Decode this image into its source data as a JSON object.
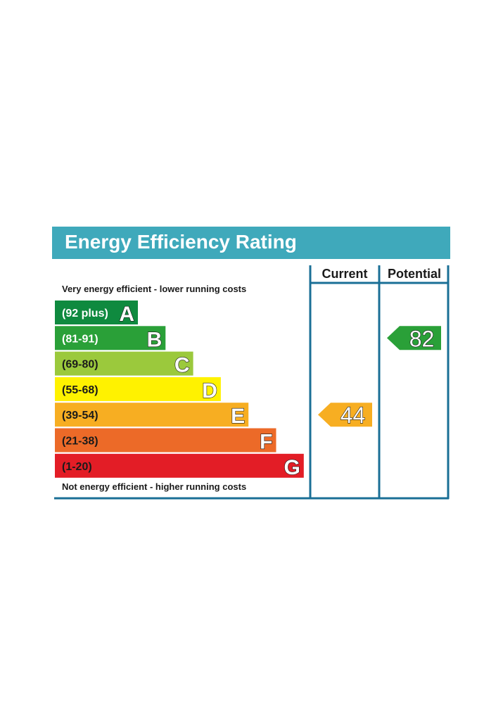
{
  "title": "Energy Efficiency Rating",
  "columns": {
    "current": "Current",
    "potential": "Potential"
  },
  "top_caption": "Very energy efficient - lower running costs",
  "bottom_caption": "Not energy efficient - higher running costs",
  "colors": {
    "title_bar": "#3fa9bb",
    "frame": "#1a6f96",
    "title_text": "#ffffff"
  },
  "chart_data": {
    "type": "bar",
    "bands": [
      {
        "letter": "A",
        "range": "(92 plus)",
        "color": "#0f8a3f",
        "label_color": "#ffffff"
      },
      {
        "letter": "B",
        "range": "(81-91)",
        "color": "#2aa038",
        "label_color": "#ffffff"
      },
      {
        "letter": "C",
        "range": "(69-80)",
        "color": "#9bc93c",
        "label_color": "#1a1a1a"
      },
      {
        "letter": "D",
        "range": "(55-68)",
        "color": "#fff200",
        "label_color": "#1a1a1a"
      },
      {
        "letter": "E",
        "range": "(39-54)",
        "color": "#f7ae22",
        "label_color": "#1a1a1a"
      },
      {
        "letter": "F",
        "range": "(21-38)",
        "color": "#ec6a28",
        "label_color": "#1a1a1a"
      },
      {
        "letter": "G",
        "range": "(1-20)",
        "color": "#e31d26",
        "label_color": "#1a1a1a"
      }
    ],
    "current": {
      "value": 44,
      "band": "E",
      "color": "#f7ae22"
    },
    "potential": {
      "value": 82,
      "band": "B",
      "color": "#2aa038"
    }
  }
}
